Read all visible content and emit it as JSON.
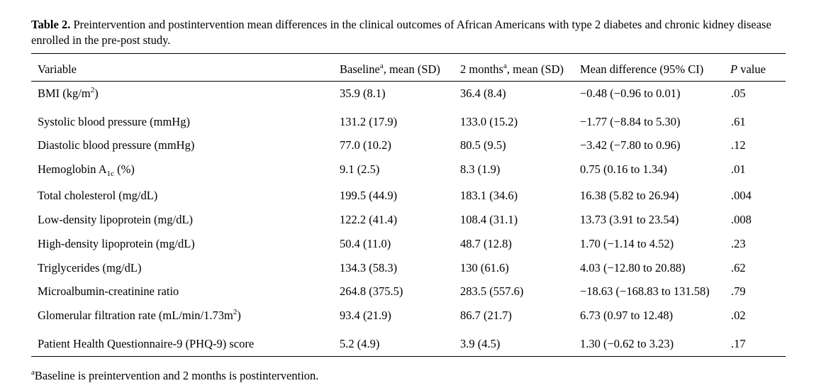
{
  "caption": {
    "label": "Table 2.",
    "text": " Preintervention and postintervention mean differences in the clinical outcomes of African Americans with type 2 diabetes and chronic kidney disease enrolled in the pre-post study."
  },
  "headers": {
    "variable": "Variable",
    "baseline": "Baseline",
    "baseline_sup": "a",
    "baseline_suffix": ", mean (SD)",
    "months": "2 months",
    "months_sup": "a",
    "months_suffix": ", mean (SD)",
    "mean_diff": "Mean difference (95% CI)",
    "p_italic": "P",
    "p_rest": " value"
  },
  "rows": [
    {
      "variable": "BMI (kg/m",
      "variable_sup": "2",
      "variable_end": ")",
      "baseline": "35.9 (8.1)",
      "months": "36.4 (8.4)",
      "diff": "−0.48 (−0.96 to 0.01)",
      "p": ".05"
    },
    {
      "variable": "Systolic blood pressure (mmHg)",
      "baseline": "131.2 (17.9)",
      "months": "133.0 (15.2)",
      "diff": "−1.77 (−8.84 to 5.30)",
      "p": ".61"
    },
    {
      "variable": "Diastolic blood pressure (mmHg)",
      "baseline": "77.0 (10.2)",
      "months": "80.5 (9.5)",
      "diff": "−3.42 (−7.80 to 0.96)",
      "p": ".12"
    },
    {
      "variable": "Hemoglobin A",
      "variable_sub": "1c",
      "variable_end": " (%)",
      "baseline": "9.1 (2.5)",
      "months": "8.3 (1.9)",
      "diff": "0.75 (0.16 to 1.34)",
      "p": ".01"
    },
    {
      "variable": "Total cholesterol (mg/dL)",
      "baseline": "199.5 (44.9)",
      "months": "183.1 (34.6)",
      "diff": "16.38 (5.82 to 26.94)",
      "p": ".004"
    },
    {
      "variable": "Low-density lipoprotein (mg/dL)",
      "baseline": "122.2 (41.4)",
      "months": "108.4 (31.1)",
      "diff": "13.73 (3.91 to 23.54)",
      "p": ".008"
    },
    {
      "variable": "High-density lipoprotein (mg/dL)",
      "baseline": "50.4 (11.0)",
      "months": "48.7 (12.8)",
      "diff": "1.70 (−1.14 to 4.52)",
      "p": ".23"
    },
    {
      "variable": "Triglycerides (mg/dL)",
      "baseline": "134.3 (58.3)",
      "months": "130 (61.6)",
      "diff": "4.03 (−12.80 to 20.88)",
      "p": ".62"
    },
    {
      "variable": "Microalbumin-creatinine ratio",
      "baseline": "264.8 (375.5)",
      "months": "283.5 (557.6)",
      "diff": "−18.63 (−168.83 to 131.58)",
      "p": ".79"
    },
    {
      "variable": "Glomerular filtration rate (mL/min/1.73m",
      "variable_sup": "2",
      "variable_end": ")",
      "baseline": "93.4 (21.9)",
      "months": "86.7 (21.7)",
      "diff": "6.73 (0.97 to 12.48)",
      "p": ".02"
    },
    {
      "variable": "Patient Health Questionnaire-9 (PHQ-9) score",
      "baseline": "5.2 (4.9)",
      "months": "3.9 (4.5)",
      "diff": "1.30 (−0.62 to 3.23)",
      "p": ".17"
    }
  ],
  "footnote": {
    "sup": "a",
    "text": "Baseline is preintervention and 2 months is postintervention."
  }
}
